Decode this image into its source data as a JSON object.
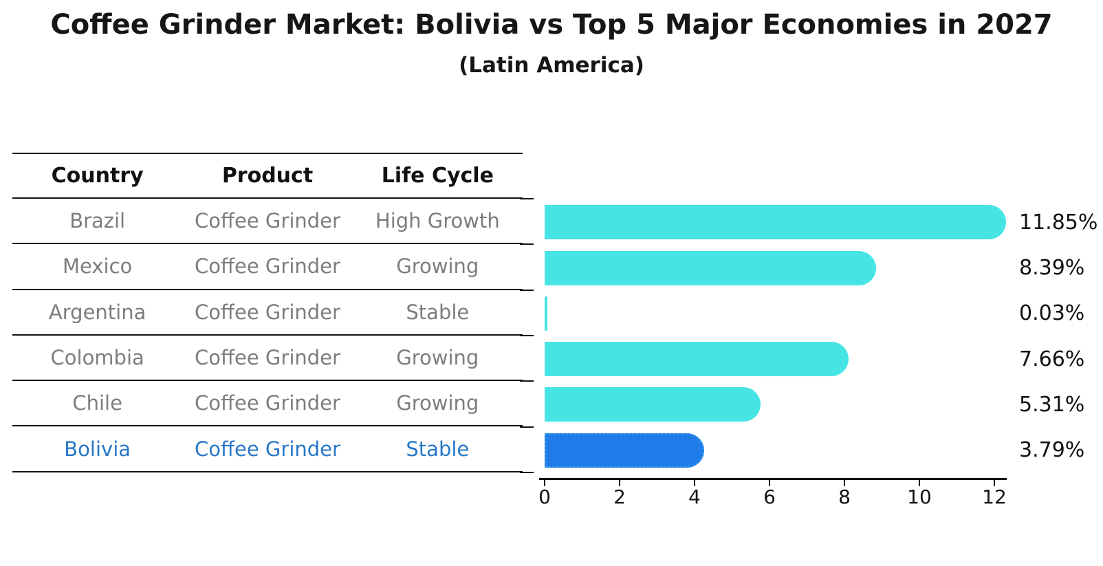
{
  "title": "Coffee Grinder Market: Bolivia vs Top 5 Major Economies in 2027",
  "subtitle": "(Latin America)",
  "table": {
    "headers": [
      "Country",
      "Product",
      "Life Cycle"
    ],
    "rows": [
      {
        "country": "Brazil",
        "product": "Coffee Grinder",
        "life_cycle": "High Growth",
        "highlight": false
      },
      {
        "country": "Mexico",
        "product": "Coffee Grinder",
        "life_cycle": "Growing",
        "highlight": false
      },
      {
        "country": "Argentina",
        "product": "Coffee Grinder",
        "life_cycle": "Stable",
        "highlight": false
      },
      {
        "country": "Colombia",
        "product": "Coffee Grinder",
        "life_cycle": "Growing",
        "highlight": false
      },
      {
        "country": "Chile",
        "product": "Coffee Grinder",
        "life_cycle": "Growing",
        "highlight": false
      },
      {
        "country": "Bolivia",
        "product": "Coffee Grinder",
        "life_cycle": "Stable",
        "highlight": true
      }
    ]
  },
  "chart_data": {
    "type": "bar",
    "orientation": "horizontal",
    "title": "Coffee Grinder Market: Bolivia vs Top 5 Major Economies in 2027 (Latin America)",
    "categories": [
      "Brazil",
      "Mexico",
      "Argentina",
      "Colombia",
      "Chile",
      "Bolivia"
    ],
    "values": [
      11.85,
      8.39,
      0.03,
      7.66,
      5.31,
      3.79
    ],
    "value_labels": [
      "11.85%",
      "8.39%",
      "0.03%",
      "7.66%",
      "5.31%",
      "3.79%"
    ],
    "xlabel": "",
    "ylabel": "",
    "xlim": [
      0,
      12.4
    ],
    "x_ticks": [
      0,
      2,
      4,
      6,
      8,
      10,
      12
    ],
    "grid": false,
    "legend": "none",
    "bar_color": "#47e4e6",
    "highlight_index": 5,
    "highlight_color": "#1e7be8",
    "highlight_border_color": "#2f8fef",
    "highlight_text_color": "#2878c8",
    "muted_text_color": "#7d7d7d"
  }
}
